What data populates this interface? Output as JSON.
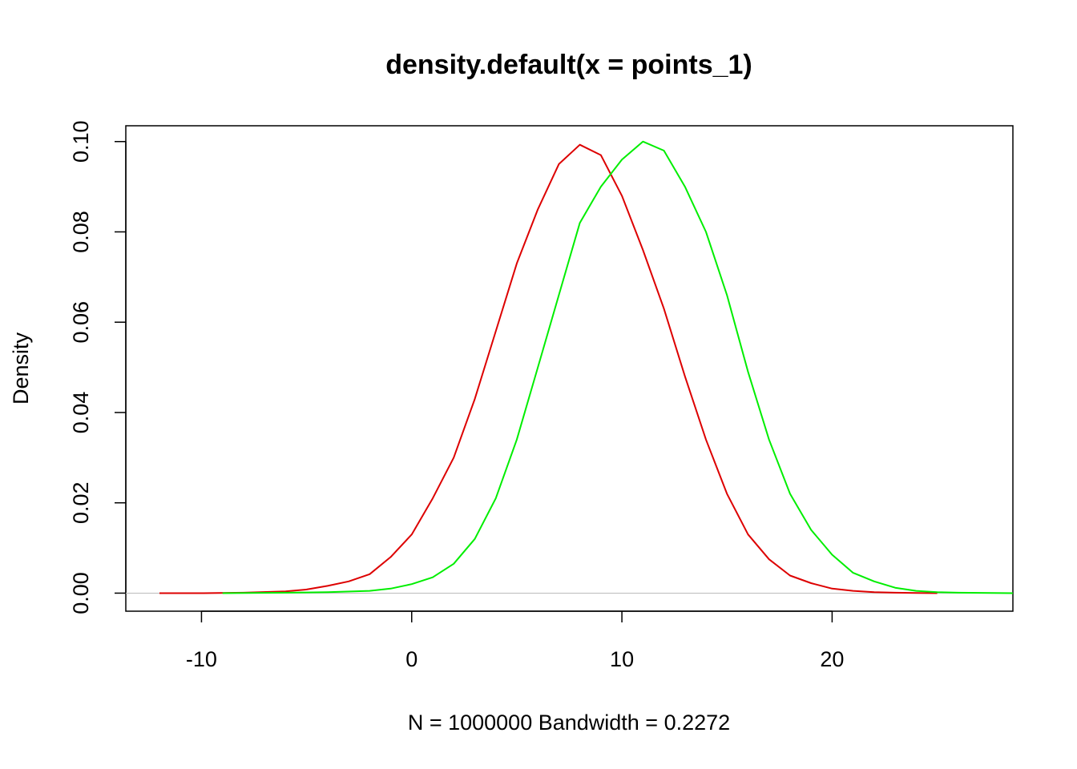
{
  "chart_data": {
    "type": "line",
    "title": "density.default(x = points_1)",
    "xlabel": "N = 1000000   Bandwidth = 0.2272",
    "ylabel": "Density",
    "xlim": [
      -13.6,
      28.6
    ],
    "ylim": [
      -0.004,
      0.1035
    ],
    "x_ticks": [
      -10,
      0,
      10,
      20
    ],
    "x_tick_labels": [
      "-10",
      "0",
      "10",
      "20"
    ],
    "y_ticks": [
      0,
      0.02,
      0.04,
      0.06,
      0.08,
      0.1
    ],
    "y_tick_labels": [
      "0.00",
      "0.02",
      "0.04",
      "0.06",
      "0.08",
      "0.10"
    ],
    "zero_line": true,
    "grid": false,
    "series": [
      {
        "color": "#dd0000",
        "x": [
          -12,
          -10,
          -8,
          -6,
          -5,
          -4,
          -3,
          -2,
          -1,
          0,
          1,
          2,
          3,
          4,
          5,
          6,
          7,
          8,
          9,
          10,
          11,
          12,
          13,
          14,
          15,
          16,
          17,
          18,
          19,
          20,
          21,
          22,
          23,
          24,
          25
        ],
        "y": [
          0,
          0,
          0.0001,
          0.0004,
          0.0008,
          0.0016,
          0.0026,
          0.0042,
          0.008,
          0.013,
          0.021,
          0.03,
          0.043,
          0.058,
          0.073,
          0.085,
          0.095,
          0.0993,
          0.097,
          0.088,
          0.076,
          0.063,
          0.048,
          0.034,
          0.022,
          0.013,
          0.0075,
          0.0039,
          0.0022,
          0.001,
          0.0005,
          0.0002,
          0.0001,
          3e-05,
          0
        ]
      },
      {
        "color": "#00ee00",
        "x": [
          -9,
          -6,
          -4,
          -2,
          -1,
          0,
          1,
          2,
          3,
          4,
          5,
          6,
          7,
          8,
          9,
          10,
          11,
          12,
          13,
          14,
          15,
          16,
          17,
          18,
          19,
          20,
          21,
          22,
          23,
          24,
          25,
          26,
          28.6
        ],
        "y": [
          0,
          0.0001,
          0.0002,
          0.0005,
          0.001,
          0.002,
          0.0035,
          0.0065,
          0.012,
          0.021,
          0.034,
          0.05,
          0.066,
          0.082,
          0.09,
          0.096,
          0.1,
          0.098,
          0.09,
          0.08,
          0.066,
          0.049,
          0.034,
          0.022,
          0.014,
          0.0085,
          0.0045,
          0.0026,
          0.0012,
          0.0005,
          0.0002,
          0.0001,
          0
        ]
      }
    ]
  }
}
